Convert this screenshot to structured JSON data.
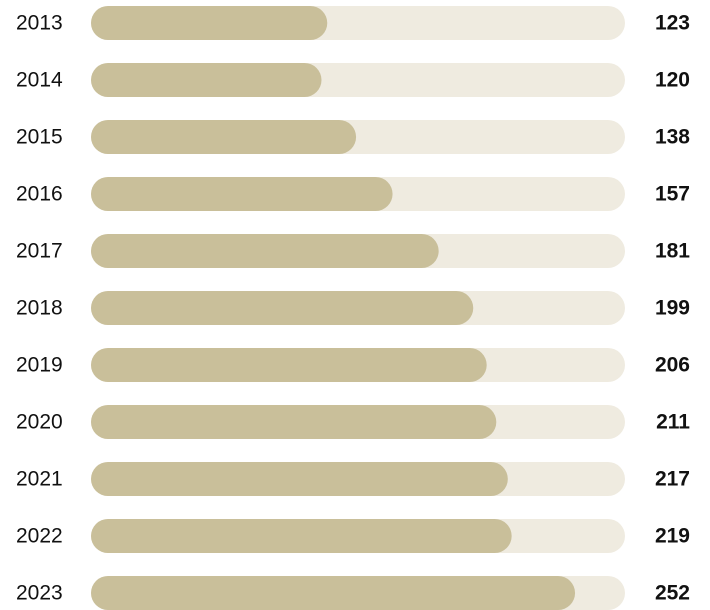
{
  "chart_data": {
    "type": "bar",
    "orientation": "horizontal",
    "categories": [
      "2013",
      "2014",
      "2015",
      "2016",
      "2017",
      "2018",
      "2019",
      "2020",
      "2021",
      "2022",
      "2023"
    ],
    "values": [
      123,
      120,
      138,
      157,
      181,
      199,
      206,
      211,
      217,
      219,
      252
    ],
    "color": "#c9bf9a",
    "track_color": "#efebe0",
    "xlim": [
      0,
      278
    ]
  }
}
